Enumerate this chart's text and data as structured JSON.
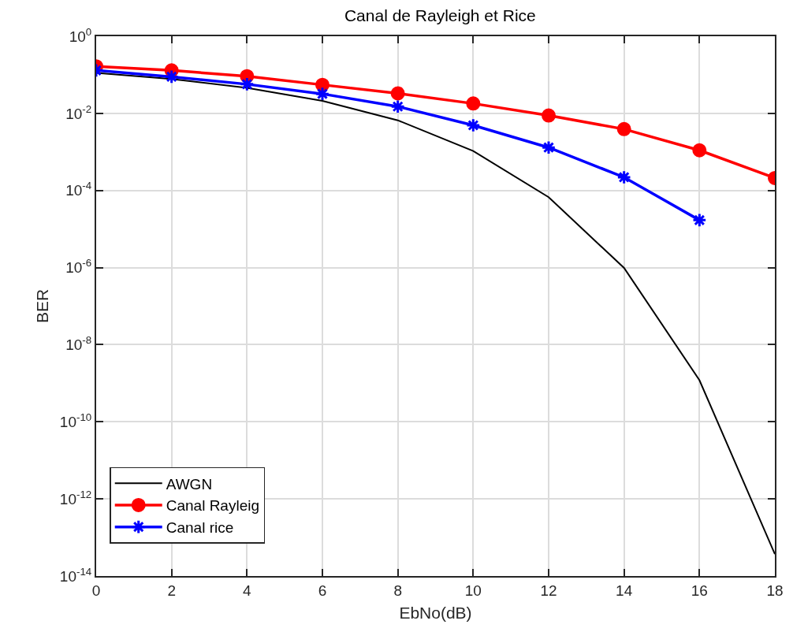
{
  "chart_data": {
    "type": "line",
    "title": "Canal de Rayleigh et Rice",
    "xlabel": "EbNo(dB)",
    "ylabel": "BER",
    "x": [
      0,
      2,
      4,
      6,
      8,
      10,
      12,
      14,
      16,
      18
    ],
    "series": [
      {
        "name": "AWGN",
        "color": "#000000",
        "marker": "none",
        "values": [
          0.112,
          0.078,
          0.046,
          0.021,
          0.0066,
          0.00106,
          6.7e-05,
          9.8e-07,
          1.2e-09,
          3.7e-14
        ]
      },
      {
        "name": "Canal Rayleig",
        "color": "#ff0000",
        "marker": "circle",
        "values": [
          0.166,
          0.13,
          0.092,
          0.055,
          0.033,
          0.018,
          0.0088,
          0.0039,
          0.0011,
          0.00021
        ]
      },
      {
        "name": "Canal rice",
        "color": "#0000ff",
        "marker": "cross",
        "values": [
          0.13,
          0.089,
          0.057,
          0.032,
          0.015,
          0.0049,
          0.0013,
          0.00022,
          1.7e-05,
          null
        ]
      }
    ],
    "log": "y",
    "xlim": [
      0,
      18
    ],
    "xticks": [
      0,
      2,
      4,
      6,
      8,
      10,
      12,
      14,
      16,
      18
    ],
    "ylim": [
      1e-14,
      1
    ],
    "yticks": [
      {
        "value": 1e-14,
        "label": "10$^{-14}$"
      },
      {
        "value": 1e-12,
        "label": "10$^{-12}$"
      },
      {
        "value": 1e-10,
        "label": "10$^{-10}$"
      },
      {
        "value": 1e-08,
        "label": "10$^{-8}$"
      },
      {
        "value": 1e-06,
        "label": "10$^{-6}$"
      },
      {
        "value": 0.0001,
        "label": "10$^{-4}$"
      },
      {
        "value": 0.01,
        "label": "10$^{-2}$"
      },
      {
        "value": 1,
        "label": "10$^{0}$"
      }
    ],
    "grid": true,
    "legend": "bottom left",
    "line_style": "solid"
  }
}
